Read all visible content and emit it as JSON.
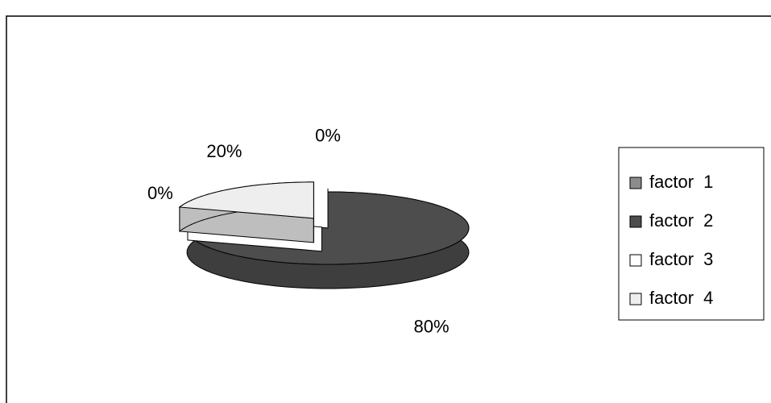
{
  "chart_data": {
    "type": "pie3d",
    "categories": [
      "factor 1",
      "factor 2",
      "factor 3",
      "factor 4"
    ],
    "values": [
      0,
      80,
      0,
      20
    ],
    "value_labels": [
      "0%",
      "80%",
      "0%",
      "20%"
    ],
    "colors": [
      "#8c8c8c",
      "#4d4d4d",
      "#ffffff",
      "#eeeeee"
    ],
    "legend": "right"
  }
}
